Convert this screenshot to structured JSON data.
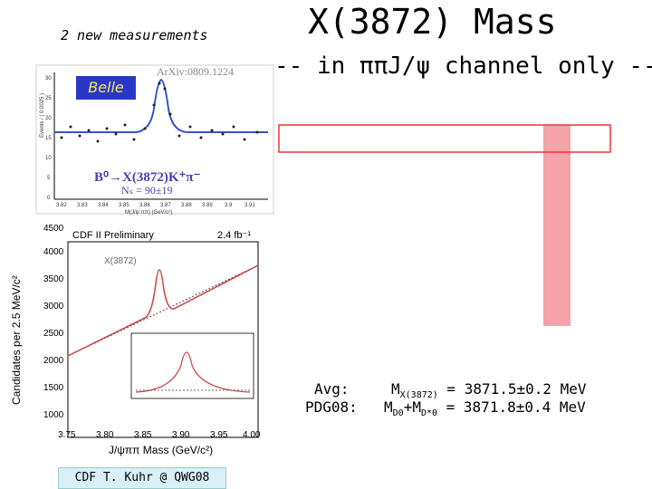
{
  "slide": {
    "subtitle": "2 new measurements",
    "title": "X(3872) Mass",
    "channel_line": "-- in ππJ/ψ channel only --",
    "belle_label": "Belle",
    "arxiv_label": "ArXiv:0809.1224",
    "belle_decay_label": "B⁰→X(3872)K⁺π⁻",
    "belle_ns_label": "Nₛ = 90±19",
    "belle_ylabel": "Events / ( 0.0025 )",
    "belle_xlabel": "M(J/ψ ππ) (GeV/c²)",
    "belle_xticks": [
      "3.82",
      "3.83",
      "3.84",
      "3.85",
      "3.86",
      "3.87",
      "3.88",
      "3.89",
      "3.9",
      "3.91"
    ],
    "belle_yticks": [
      "0",
      "5",
      "10",
      "15",
      "20",
      "25",
      "30"
    ],
    "cdf_preliminary": "CDF II Preliminary",
    "cdf_lumi": "2.4 fb⁻¹",
    "cdf_peak_label": "X(3872)",
    "cdf_ylabel": "Candidates per 2.5 MeV/c²",
    "cdf_xlabel": "J/ψππ Mass (GeV/c²)",
    "cdf_xticks": [
      "3.75",
      "3.80",
      "3.85",
      "3.90",
      "3.95",
      "4.00"
    ],
    "cdf_yticks": [
      "1000",
      "1500",
      "2000",
      "2500",
      "3000",
      "3500",
      "4000",
      "4500"
    ],
    "avg_label": "Avg:",
    "pdg_label": "PDG08:",
    "mx_symbol": "M",
    "mx_sub": "X(3872)",
    "mx_value": " = 3871.5±0.2 MeV",
    "md_symbol1": "M",
    "md_sub1": "D0",
    "md_plus": "+M",
    "md_sub2": "D*0",
    "md_value": " = 3871.8±0.4 MeV",
    "credit": "CDF T. Kuhr @ QWG08"
  }
}
